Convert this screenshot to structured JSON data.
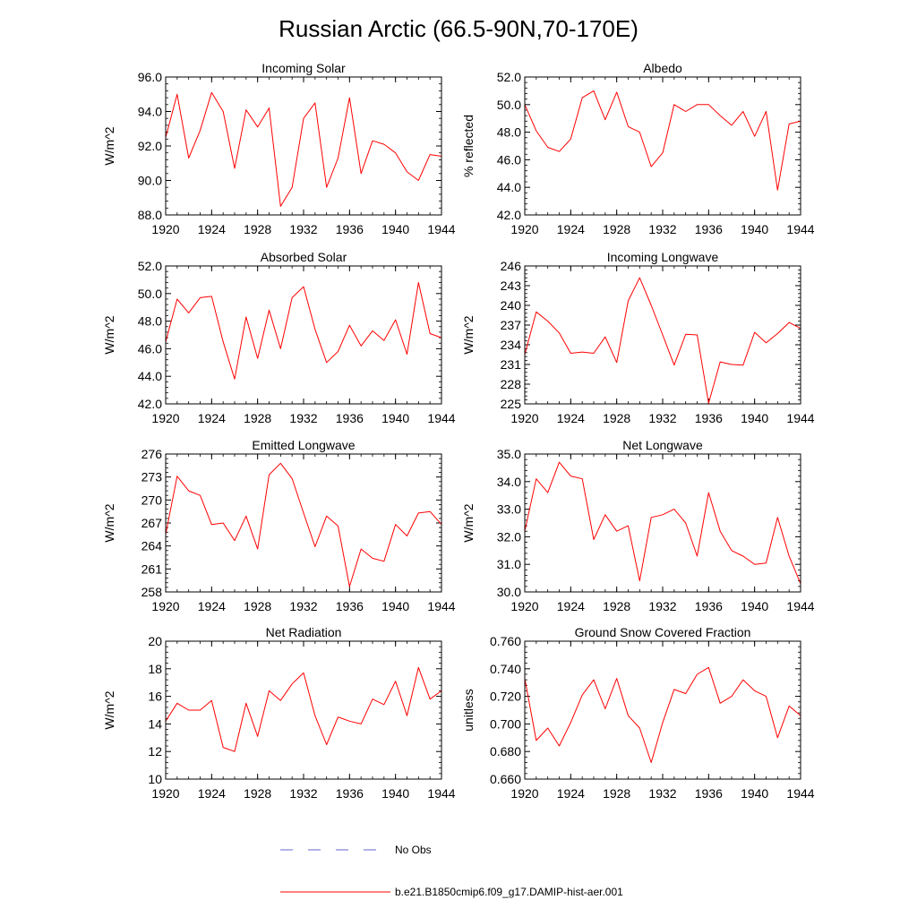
{
  "title": "Russian Arctic (66.5-90N,70-170E)",
  "chart_data": [
    {
      "type": "line",
      "title": "Incoming Solar",
      "ylabel": "W/m^2",
      "xlim": [
        1920,
        1944
      ],
      "ylim": [
        88.0,
        96.0
      ],
      "xticks": [
        1920,
        1924,
        1928,
        1932,
        1936,
        1940,
        1944
      ],
      "xtick_labels": [
        "1920",
        "1924",
        "1928",
        "1932",
        "1936",
        "1940",
        "1944"
      ],
      "yticks": [
        88,
        90,
        92,
        94,
        96
      ],
      "ytick_labels": [
        "88.0",
        "90.0",
        "92.0",
        "94.0",
        "96.0"
      ],
      "series": [
        {
          "x": [
            1920,
            1921,
            1922,
            1923,
            1924,
            1925,
            1926,
            1927,
            1928,
            1929,
            1930,
            1931,
            1932,
            1933,
            1934,
            1935,
            1936,
            1937,
            1938,
            1939,
            1940,
            1941,
            1942,
            1943,
            1944
          ],
          "y": [
            92.5,
            95.0,
            91.3,
            92.9,
            95.1,
            94.0,
            90.7,
            94.1,
            93.1,
            94.2,
            88.5,
            89.6,
            93.6,
            94.5,
            89.6,
            91.3,
            94.8,
            90.4,
            92.3,
            92.1,
            91.6,
            90.5,
            90.0,
            91.5,
            91.4
          ],
          "color": "#ff0000"
        }
      ]
    },
    {
      "type": "line",
      "title": "Albedo",
      "ylabel": "% reflected",
      "xlim": [
        1920,
        1944
      ],
      "ylim": [
        42.0,
        52.0
      ],
      "xticks": [
        1920,
        1924,
        1928,
        1932,
        1936,
        1940,
        1944
      ],
      "xtick_labels": [
        "1920",
        "1924",
        "1928",
        "1932",
        "1936",
        "1940",
        "1944"
      ],
      "yticks": [
        42,
        44,
        46,
        48,
        50,
        52
      ],
      "ytick_labels": [
        "42.0",
        "44.0",
        "46.0",
        "48.0",
        "50.0",
        "52.0"
      ],
      "series": [
        {
          "x": [
            1920,
            1921,
            1922,
            1923,
            1924,
            1925,
            1926,
            1927,
            1928,
            1929,
            1930,
            1931,
            1932,
            1933,
            1934,
            1935,
            1936,
            1937,
            1938,
            1939,
            1940,
            1941,
            1942,
            1943,
            1944
          ],
          "y": [
            50.0,
            48.1,
            46.9,
            46.6,
            47.5,
            50.5,
            51.0,
            48.9,
            50.9,
            48.4,
            48.0,
            45.5,
            46.5,
            50.0,
            49.5,
            50.0,
            50.0,
            49.2,
            48.5,
            49.5,
            47.7,
            49.5,
            43.8,
            48.6,
            48.8
          ],
          "color": "#ff0000"
        }
      ]
    },
    {
      "type": "line",
      "title": "Absorbed Solar",
      "ylabel": "W/m^2",
      "xlim": [
        1920,
        1944
      ],
      "ylim": [
        42.0,
        52.0
      ],
      "xticks": [
        1920,
        1924,
        1928,
        1932,
        1936,
        1940,
        1944
      ],
      "xtick_labels": [
        "1920",
        "1924",
        "1928",
        "1932",
        "1936",
        "1940",
        "1944"
      ],
      "yticks": [
        42,
        44,
        46,
        48,
        50,
        52
      ],
      "ytick_labels": [
        "42.0",
        "44.0",
        "46.0",
        "48.0",
        "50.0",
        "52.0"
      ],
      "series": [
        {
          "x": [
            1920,
            1921,
            1922,
            1923,
            1924,
            1925,
            1926,
            1927,
            1928,
            1929,
            1930,
            1931,
            1932,
            1933,
            1934,
            1935,
            1936,
            1937,
            1938,
            1939,
            1940,
            1941,
            1942,
            1943,
            1944
          ],
          "y": [
            46.5,
            49.6,
            48.6,
            49.7,
            49.8,
            46.5,
            43.8,
            48.3,
            45.3,
            48.8,
            46.0,
            49.7,
            50.5,
            47.4,
            45.0,
            45.8,
            47.7,
            46.2,
            47.3,
            46.6,
            48.1,
            45.6,
            50.8,
            47.1,
            46.8
          ],
          "color": "#ff0000"
        }
      ]
    },
    {
      "type": "line",
      "title": "Incoming Longwave",
      "ylabel": "W/m^2",
      "xlim": [
        1920,
        1944
      ],
      "ylim": [
        225,
        246
      ],
      "xticks": [
        1920,
        1924,
        1928,
        1932,
        1936,
        1940,
        1944
      ],
      "xtick_labels": [
        "1920",
        "1924",
        "1928",
        "1932",
        "1936",
        "1940",
        "1944"
      ],
      "yticks": [
        225,
        228,
        231,
        234,
        237,
        240,
        243,
        246
      ],
      "ytick_labels": [
        "225",
        "228",
        "231",
        "234",
        "237",
        "240",
        "243",
        "246"
      ],
      "series": [
        {
          "x": [
            1920,
            1921,
            1922,
            1923,
            1924,
            1925,
            1926,
            1927,
            1928,
            1929,
            1930,
            1931,
            1932,
            1933,
            1934,
            1935,
            1936,
            1937,
            1938,
            1939,
            1940,
            1941,
            1942,
            1943,
            1944
          ],
          "y": [
            232.5,
            239.0,
            237.6,
            235.8,
            232.7,
            232.9,
            232.7,
            235.2,
            231.3,
            240.7,
            244.2,
            240.0,
            235.5,
            230.9,
            235.6,
            235.5,
            225.1,
            231.4,
            231.0,
            230.9,
            235.9,
            234.3,
            235.7,
            237.4,
            236.5
          ],
          "color": "#ff0000"
        }
      ]
    },
    {
      "type": "line",
      "title": "Emitted Longwave",
      "ylabel": "W/m^2",
      "xlim": [
        1920,
        1944
      ],
      "ylim": [
        258,
        276
      ],
      "xticks": [
        1920,
        1924,
        1928,
        1932,
        1936,
        1940,
        1944
      ],
      "xtick_labels": [
        "1920",
        "1924",
        "1928",
        "1932",
        "1936",
        "1940",
        "1944"
      ],
      "yticks": [
        258,
        261,
        264,
        267,
        270,
        273,
        276
      ],
      "ytick_labels": [
        "258",
        "261",
        "264",
        "267",
        "270",
        "273",
        "276"
      ],
      "series": [
        {
          "x": [
            1920,
            1921,
            1922,
            1923,
            1924,
            1925,
            1926,
            1927,
            1928,
            1929,
            1930,
            1931,
            1932,
            1933,
            1934,
            1935,
            1936,
            1937,
            1938,
            1939,
            1940,
            1941,
            1942,
            1943,
            1944
          ],
          "y": [
            265.5,
            273.1,
            271.2,
            270.6,
            266.8,
            267.0,
            264.7,
            267.9,
            263.6,
            273.3,
            274.8,
            272.8,
            268.3,
            263.9,
            267.9,
            266.6,
            258.7,
            263.6,
            262.4,
            262.0,
            266.8,
            265.3,
            268.3,
            268.5,
            266.8
          ],
          "color": "#ff0000"
        }
      ]
    },
    {
      "type": "line",
      "title": "Net Longwave",
      "ylabel": "W/m^2",
      "xlim": [
        1920,
        1944
      ],
      "ylim": [
        30.0,
        35.0
      ],
      "xticks": [
        1920,
        1924,
        1928,
        1932,
        1936,
        1940,
        1944
      ],
      "xtick_labels": [
        "1920",
        "1924",
        "1928",
        "1932",
        "1936",
        "1940",
        "1944"
      ],
      "yticks": [
        30,
        31,
        32,
        33,
        34,
        35
      ],
      "ytick_labels": [
        "30.0",
        "31.0",
        "32.0",
        "33.0",
        "34.0",
        "35.0"
      ],
      "series": [
        {
          "x": [
            1920,
            1921,
            1922,
            1923,
            1924,
            1925,
            1926,
            1927,
            1928,
            1929,
            1930,
            1931,
            1932,
            1933,
            1934,
            1935,
            1936,
            1937,
            1938,
            1939,
            1940,
            1941,
            1942,
            1943,
            1944
          ],
          "y": [
            32.2,
            34.1,
            33.6,
            34.7,
            34.2,
            34.1,
            31.9,
            32.8,
            32.2,
            32.4,
            30.4,
            32.7,
            32.8,
            33.0,
            32.5,
            31.3,
            33.6,
            32.2,
            31.5,
            31.3,
            31.0,
            31.05,
            32.7,
            31.3,
            30.3
          ],
          "color": "#ff0000"
        }
      ]
    },
    {
      "type": "line",
      "title": "Net Radiation",
      "ylabel": "W/m^2",
      "xlim": [
        1920,
        1944
      ],
      "ylim": [
        10,
        20
      ],
      "xticks": [
        1920,
        1924,
        1928,
        1932,
        1936,
        1940,
        1944
      ],
      "xtick_labels": [
        "1920",
        "1924",
        "1928",
        "1932",
        "1936",
        "1940",
        "1944"
      ],
      "yticks": [
        10,
        12,
        14,
        16,
        18,
        20
      ],
      "ytick_labels": [
        "10",
        "12",
        "14",
        "16",
        "18",
        "20"
      ],
      "series": [
        {
          "x": [
            1920,
            1921,
            1922,
            1923,
            1924,
            1925,
            1926,
            1927,
            1928,
            1929,
            1930,
            1931,
            1932,
            1933,
            1934,
            1935,
            1936,
            1937,
            1938,
            1939,
            1940,
            1941,
            1942,
            1943,
            1944
          ],
          "y": [
            14.2,
            15.5,
            15.0,
            15.0,
            15.7,
            12.3,
            12.0,
            15.5,
            13.1,
            16.4,
            15.7,
            16.9,
            17.7,
            14.6,
            12.5,
            14.5,
            14.2,
            14.0,
            15.8,
            15.4,
            17.1,
            14.6,
            18.1,
            15.8,
            16.4
          ],
          "color": "#ff0000"
        }
      ]
    },
    {
      "type": "line",
      "title": "Ground Snow Covered Fraction",
      "ylabel": "unitless",
      "xlim": [
        1920,
        1944
      ],
      "ylim": [
        0.66,
        0.76
      ],
      "xticks": [
        1920,
        1924,
        1928,
        1932,
        1936,
        1940,
        1944
      ],
      "xtick_labels": [
        "1920",
        "1924",
        "1928",
        "1932",
        "1936",
        "1940",
        "1944"
      ],
      "yticks": [
        0.66,
        0.68,
        0.7,
        0.72,
        0.74,
        0.76
      ],
      "ytick_labels": [
        "0.660",
        "0.680",
        "0.700",
        "0.720",
        "0.740",
        "0.760"
      ],
      "series": [
        {
          "x": [
            1920,
            1921,
            1922,
            1923,
            1924,
            1925,
            1926,
            1927,
            1928,
            1929,
            1930,
            1931,
            1932,
            1933,
            1934,
            1935,
            1936,
            1937,
            1938,
            1939,
            1940,
            1941,
            1942,
            1943,
            1944
          ],
          "y": [
            0.733,
            0.688,
            0.697,
            0.684,
            0.701,
            0.721,
            0.732,
            0.711,
            0.733,
            0.706,
            0.697,
            0.672,
            0.701,
            0.725,
            0.722,
            0.736,
            0.741,
            0.715,
            0.72,
            0.732,
            0.724,
            0.72,
            0.69,
            0.713,
            0.706
          ],
          "color": "#ff0000"
        }
      ]
    }
  ],
  "legend": {
    "items": [
      {
        "label": "No Obs",
        "color": "#6666cc",
        "style": "dashed"
      },
      {
        "label": "b.e21.B1850cmip6.f09_g17.DAMIP-hist-aer.001",
        "color": "#ff0000",
        "style": "solid"
      }
    ]
  }
}
